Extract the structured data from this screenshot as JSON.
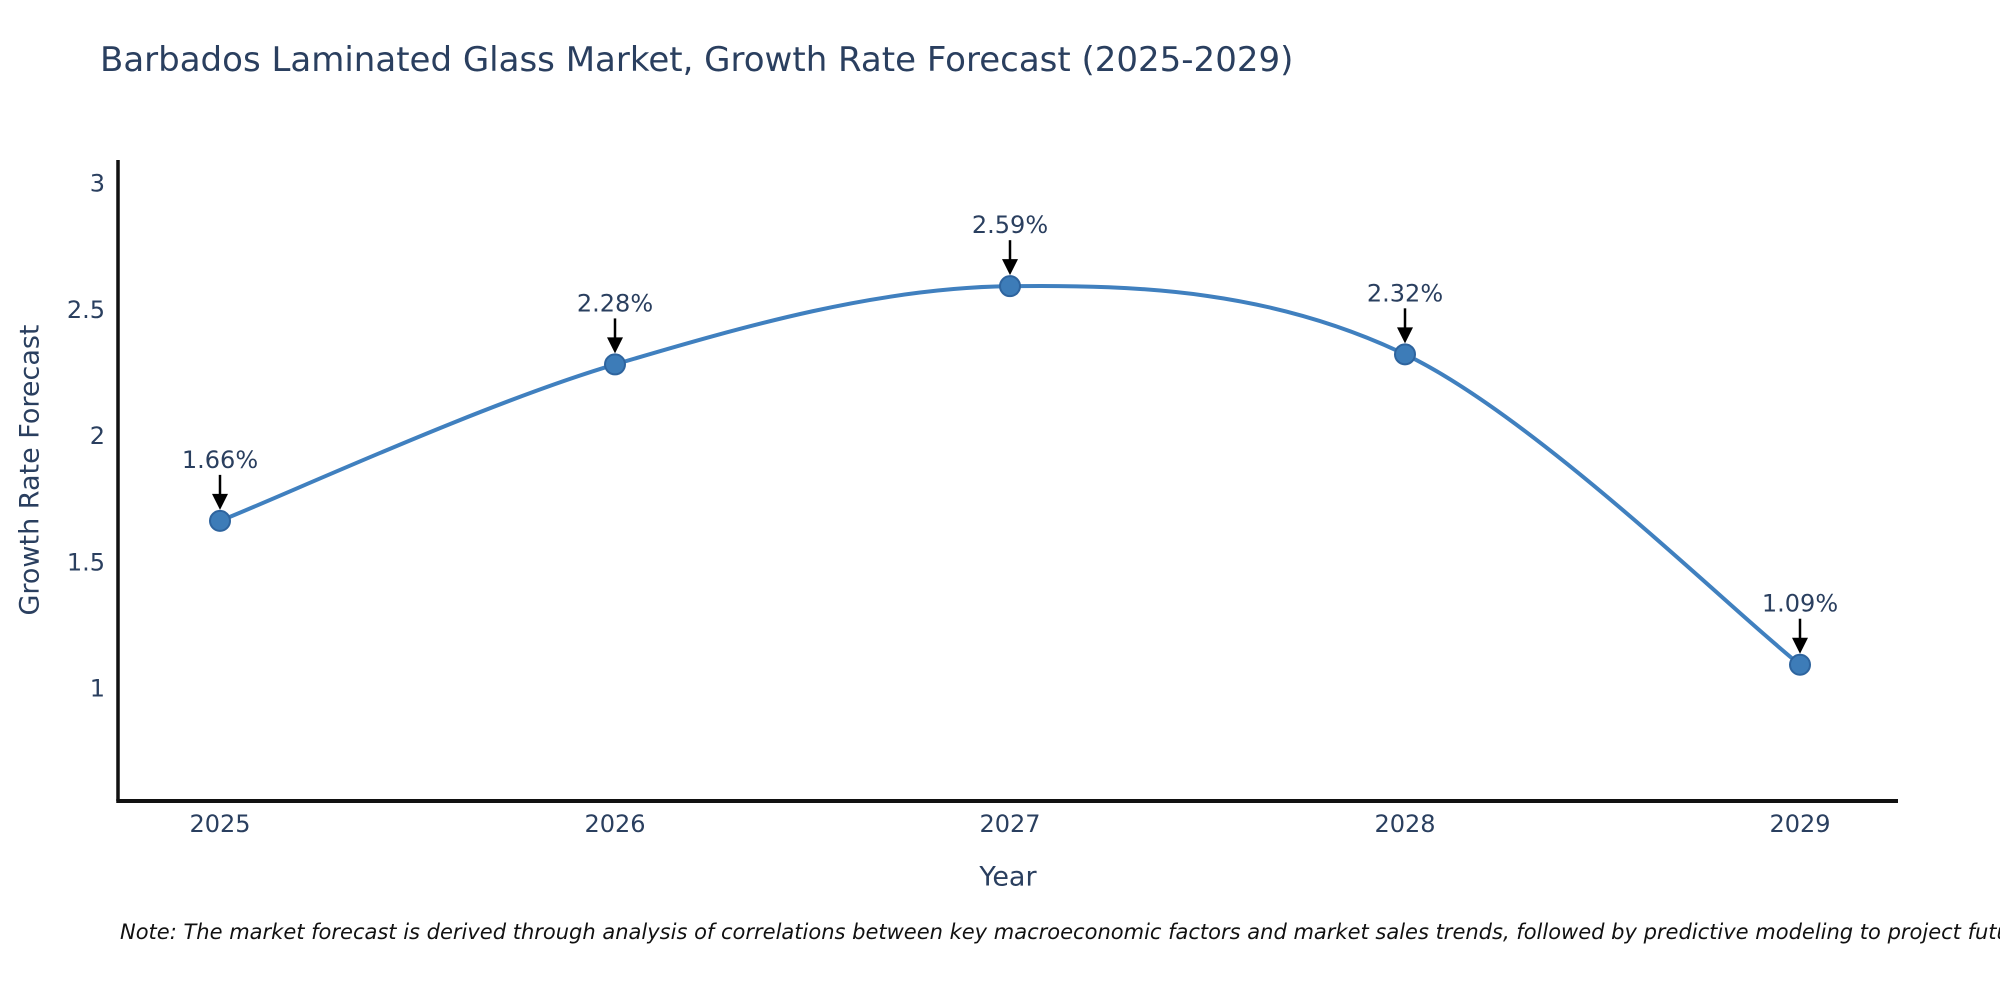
{
  "chart_data": {
    "type": "line",
    "title": "Barbados Laminated Glass Market, Growth Rate Forecast (2025-2029)",
    "xlabel": "Year",
    "ylabel": "Growth Rate Forecast",
    "x": [
      2025,
      2026,
      2027,
      2028,
      2029
    ],
    "y": [
      1.66,
      2.28,
      2.59,
      2.32,
      1.09
    ],
    "point_labels": [
      "1.66%",
      "2.28%",
      "2.59%",
      "2.32%",
      "1.09%"
    ],
    "yticks": [
      1,
      1.5,
      2,
      2.5,
      3
    ],
    "xticks": [
      "2025",
      "2026",
      "2027",
      "2028",
      "2029"
    ],
    "ylim": [
      0.55,
      3.09
    ],
    "line_shape": "spline",
    "grid": false,
    "legend": false,
    "colors": {
      "line": "#4080bf",
      "marker_fill": "#3d7cb8",
      "marker_stroke": "#2e649e",
      "axis": "#111111",
      "text": "#2a3f5f",
      "annotation_arrow": "#000000"
    }
  },
  "note": "Note: The market forecast is derived through analysis of correlations between key macroeconomic factors and market sales trends, followed by predictive modeling to project future sales"
}
